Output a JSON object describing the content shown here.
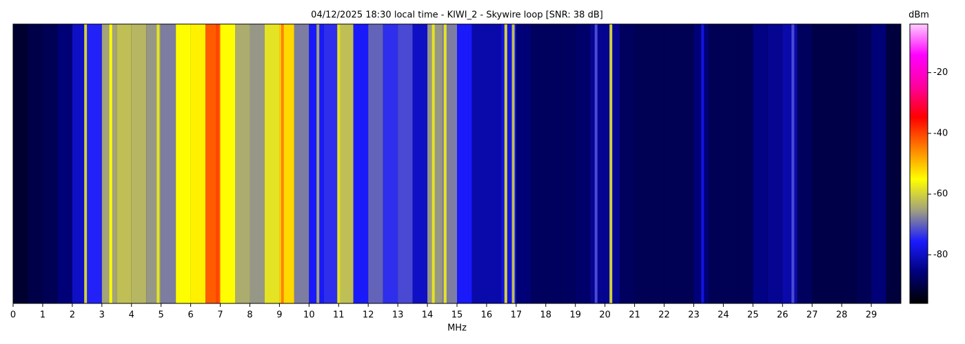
{
  "chart_data": {
    "type": "waterfall",
    "title": "04/12/2025 18:30 local time - KIWI_2 - Skywire loop [SNR: 38 dB]",
    "xlabel": "MHz",
    "colorbar_label": "dBm",
    "xlim": [
      0,
      30
    ],
    "xticks": [
      0,
      1,
      2,
      3,
      4,
      5,
      6,
      7,
      8,
      9,
      10,
      11,
      12,
      13,
      14,
      15,
      16,
      17,
      18,
      19,
      20,
      21,
      22,
      23,
      24,
      25,
      26,
      27,
      28,
      29
    ],
    "zlim": [
      -96,
      -4
    ],
    "zticks": [
      -80,
      -60,
      -40,
      -20
    ],
    "colormap": [
      "#000000",
      "#00007a",
      "#1a1aff",
      "#a0a080",
      "#ffff00",
      "#ff8000",
      "#ff0000",
      "#ff00a0",
      "#ff00ff",
      "#ffccff"
    ],
    "x": [
      0.25,
      0.75,
      1.25,
      1.75,
      2.25,
      2.75,
      3.25,
      3.75,
      4.25,
      4.75,
      5.25,
      5.75,
      6.25,
      6.75,
      7.25,
      7.75,
      8.25,
      8.75,
      9.25,
      9.75,
      10.25,
      10.75,
      11.25,
      11.75,
      12.25,
      12.75,
      13.25,
      13.75,
      14.25,
      14.75,
      15.25,
      15.75,
      16.25,
      16.75,
      17.25,
      17.75,
      18.25,
      18.75,
      19.25,
      19.75,
      20.25,
      20.75,
      21.25,
      21.75,
      22.25,
      22.75,
      23.25,
      23.75,
      24.25,
      24.75,
      25.25,
      25.75,
      26.25,
      26.75,
      27.25,
      27.75,
      28.25,
      28.75,
      29.25,
      29.75
    ],
    "values": [
      -92,
      -90,
      -89,
      -86,
      -80,
      -75,
      -65,
      -62,
      -63,
      -66,
      -68,
      -55,
      -54,
      -42,
      -55,
      -64,
      -66,
      -58,
      -52,
      -68,
      -76,
      -74,
      -62,
      -76,
      -70,
      -74,
      -72,
      -80,
      -66,
      -68,
      -76,
      -82,
      -82,
      -78,
      -86,
      -88,
      -88,
      -88,
      -87,
      -84,
      -84,
      -88,
      -89,
      -89,
      -89,
      -89,
      -86,
      -89,
      -89,
      -89,
      -85,
      -84,
      -82,
      -88,
      -90,
      -90,
      -90,
      -89,
      -86,
      -91
    ],
    "signals_x": [
      2.45,
      3.3,
      4.9,
      6.9,
      9.1,
      10.3,
      11.0,
      14.2,
      14.6,
      16.65,
      16.9,
      19.7,
      20.2,
      23.3,
      26.35
    ],
    "signals_values": [
      -60,
      -55,
      -58,
      -40,
      -45,
      -65,
      -58,
      -58,
      -58,
      -60,
      -62,
      -72,
      -60,
      -78,
      -72
    ]
  }
}
